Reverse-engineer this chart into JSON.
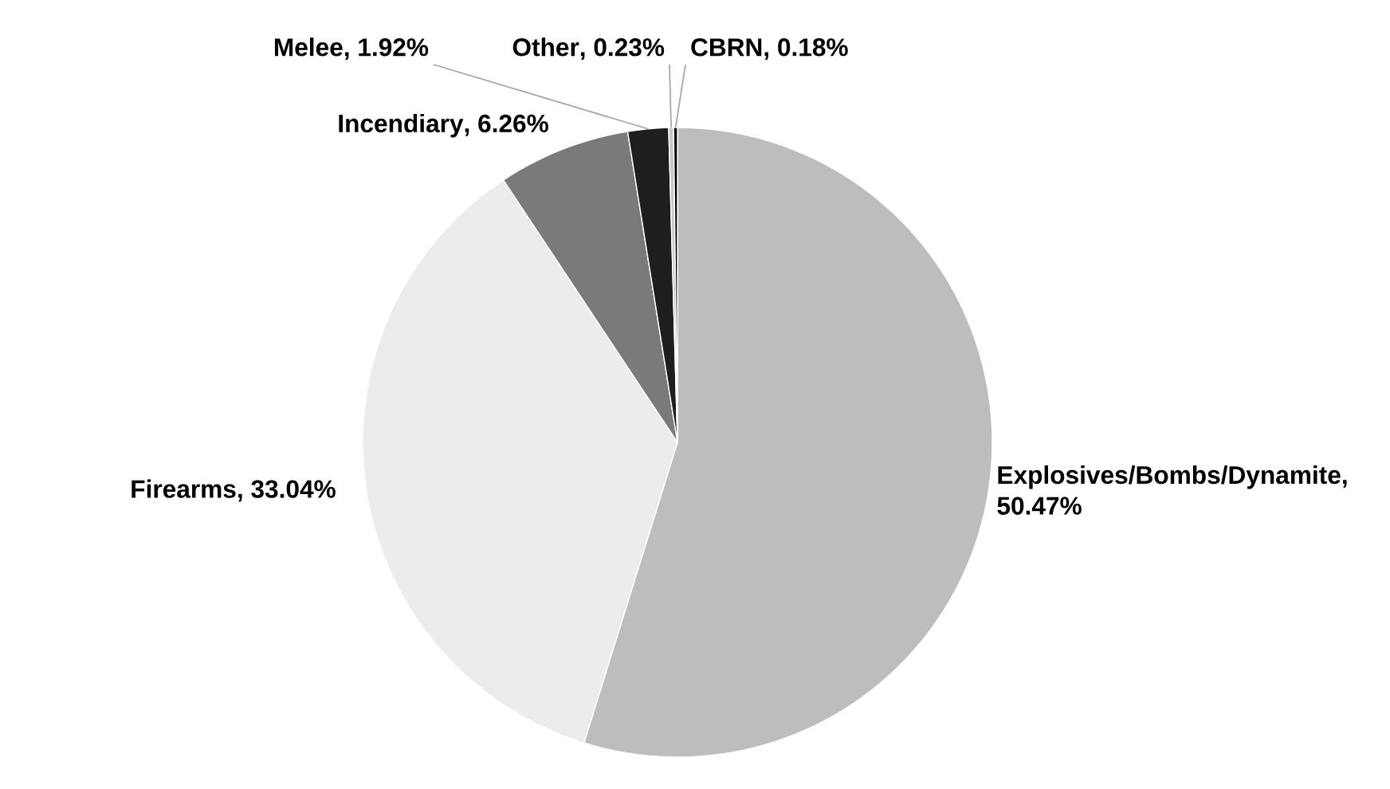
{
  "chart_data": {
    "type": "pie",
    "categories": [
      "Explosives/Bombs/Dynamite",
      "Firearms",
      "Incendiary",
      "Melee",
      "Other",
      "CBRN"
    ],
    "values": [
      50.47,
      33.04,
      6.26,
      1.92,
      0.23,
      0.18
    ],
    "value_labels": [
      ", 50.47%",
      ", 33.04%",
      ", 6.26%",
      ", 1.92%",
      ", 0.23%",
      ", 0.18%"
    ],
    "colors": [
      "#bdbdbd",
      "#ececec",
      "#7a7a7a",
      "#1e1e1e",
      "#c8c8c8",
      "#000000"
    ]
  }
}
